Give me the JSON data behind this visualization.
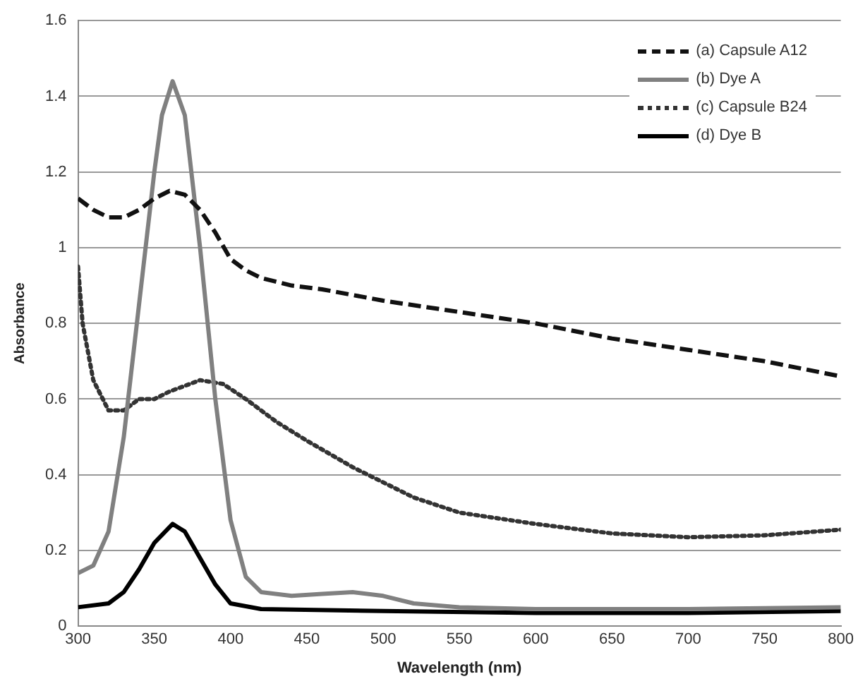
{
  "chart_data": {
    "type": "line",
    "xlabel": "Wavelength (nm)",
    "ylabel": "Absorbance",
    "xlim": [
      300,
      800
    ],
    "xticks": [
      300,
      350,
      400,
      450,
      500,
      550,
      600,
      650,
      700,
      750,
      800
    ],
    "ylim": [
      0,
      1.6
    ],
    "yticks": [
      0,
      0.2,
      0.4,
      0.6,
      0.8,
      1,
      1.2,
      1.4,
      1.6
    ],
    "grid": "y",
    "legend": "top right",
    "marker": "none",
    "series": [
      {
        "name": "(a) Capsule A12",
        "color": "#111111",
        "line_style": "dashed",
        "x": [
          300,
          310,
          320,
          330,
          340,
          350,
          360,
          370,
          380,
          390,
          400,
          410,
          420,
          440,
          460,
          500,
          550,
          600,
          650,
          700,
          750,
          800
        ],
        "values": [
          1.13,
          1.1,
          1.08,
          1.08,
          1.1,
          1.13,
          1.15,
          1.14,
          1.1,
          1.04,
          0.97,
          0.94,
          0.92,
          0.9,
          0.89,
          0.86,
          0.83,
          0.8,
          0.76,
          0.73,
          0.7,
          0.66
        ]
      },
      {
        "name": "(b) Dye A",
        "color": "#808080",
        "line_style": "solid",
        "x": [
          300,
          310,
          320,
          330,
          340,
          350,
          355,
          362,
          370,
          380,
          390,
          400,
          410,
          420,
          440,
          460,
          480,
          500,
          520,
          550,
          600,
          700,
          800
        ],
        "values": [
          0.14,
          0.16,
          0.25,
          0.5,
          0.85,
          1.2,
          1.35,
          1.44,
          1.35,
          1.0,
          0.6,
          0.28,
          0.13,
          0.09,
          0.08,
          0.085,
          0.09,
          0.08,
          0.06,
          0.05,
          0.045,
          0.045,
          0.05
        ]
      },
      {
        "name": "(c) Capsule B24",
        "color": "#333333",
        "line_style": "dotted",
        "x": [
          300,
          303,
          310,
          320,
          330,
          340,
          350,
          360,
          380,
          395,
          410,
          430,
          450,
          480,
          500,
          520,
          550,
          600,
          650,
          700,
          750,
          800
        ],
        "values": [
          0.95,
          0.8,
          0.65,
          0.57,
          0.57,
          0.6,
          0.6,
          0.62,
          0.65,
          0.64,
          0.6,
          0.54,
          0.49,
          0.42,
          0.38,
          0.34,
          0.3,
          0.27,
          0.245,
          0.235,
          0.24,
          0.255
        ]
      },
      {
        "name": "(d) Dye B",
        "color": "#000000",
        "line_style": "solid",
        "x": [
          300,
          320,
          330,
          340,
          350,
          362,
          370,
          380,
          390,
          400,
          420,
          500,
          600,
          700,
          800
        ],
        "values": [
          0.05,
          0.06,
          0.09,
          0.15,
          0.22,
          0.27,
          0.25,
          0.18,
          0.11,
          0.06,
          0.045,
          0.04,
          0.035,
          0.035,
          0.04
        ]
      }
    ]
  }
}
